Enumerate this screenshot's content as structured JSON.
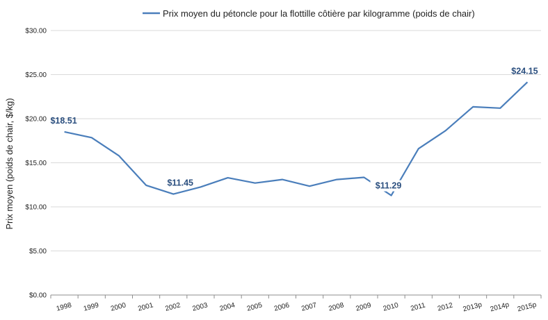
{
  "chart_data": {
    "type": "line",
    "title": "",
    "xlabel": "",
    "ylabel": "Prix moyen (poids de chair, $/kg)",
    "categories": [
      "1998",
      "1999",
      "2000",
      "2001",
      "2002",
      "2003",
      "2004",
      "2005",
      "2006",
      "2007",
      "2008",
      "2009",
      "2010",
      "2011",
      "2012",
      "2013p",
      "2014p",
      "2015p"
    ],
    "series": [
      {
        "name": "Prix moyen du pétoncle pour la flottille côtière par kilogramme (poids de chair)",
        "values": [
          18.51,
          17.85,
          15.8,
          12.45,
          11.45,
          12.25,
          13.3,
          12.7,
          13.1,
          12.35,
          13.1,
          13.35,
          11.29,
          16.6,
          18.65,
          21.35,
          21.2,
          24.15
        ],
        "color": "#4a7ebb"
      }
    ],
    "ylim": [
      0,
      30
    ],
    "yticks": [
      "$0.00",
      "$5.00",
      "$10.00",
      "$15.00",
      "$20.00",
      "$25.00",
      "$30.00"
    ],
    "grid": true,
    "legend_position": "top",
    "data_labels": [
      {
        "index": 0,
        "text": "$18.51"
      },
      {
        "index": 4,
        "text": "$11.45"
      },
      {
        "index": 12,
        "text": "$11.29"
      },
      {
        "index": 17,
        "text": "$24.15"
      }
    ]
  }
}
